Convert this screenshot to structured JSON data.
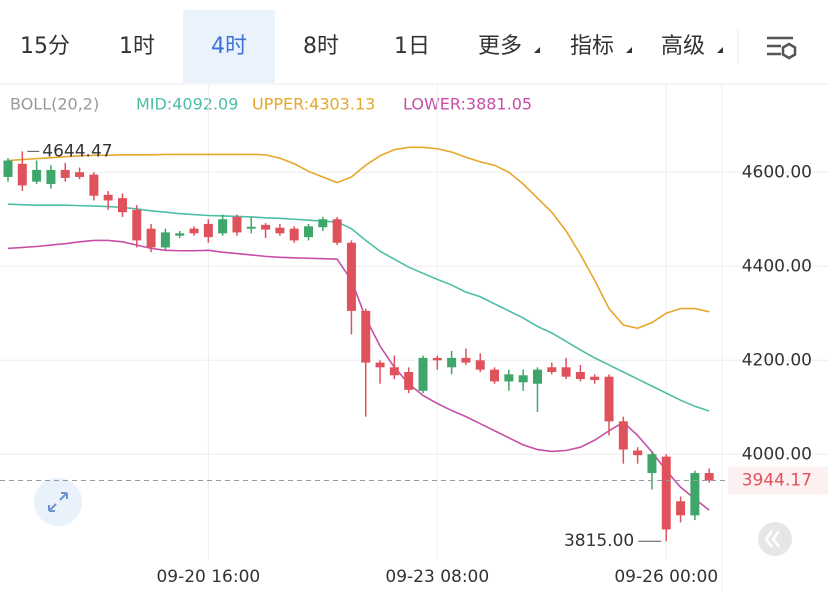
{
  "tabs": [
    {
      "label": "15分"
    },
    {
      "label": "1时"
    },
    {
      "label": "4时",
      "selected": true
    },
    {
      "label": "8时"
    },
    {
      "label": "1日"
    },
    {
      "label": "更多",
      "dropdown": true
    },
    {
      "label": "指标",
      "dropdown": true
    },
    {
      "label": "高级",
      "dropdown": true
    }
  ],
  "chart_data": {
    "type": "candlestick",
    "indicator": "BOLL(20,2)",
    "categories": [
      null,
      null,
      null,
      null,
      null,
      null,
      null,
      null,
      null,
      null,
      null,
      null,
      null,
      null,
      "09-20 16:00",
      null,
      null,
      null,
      null,
      null,
      null,
      null,
      null,
      null,
      null,
      null,
      null,
      null,
      null,
      null,
      "09-23 08:00",
      null,
      null,
      null,
      null,
      null,
      null,
      null,
      null,
      null,
      null,
      null,
      null,
      null,
      null,
      null,
      "09-26 00:00",
      null,
      null,
      null
    ],
    "open": [
      4590,
      4618,
      4580,
      4575,
      4605,
      4600,
      4595,
      4552,
      4545,
      4520,
      4480,
      4440,
      4465,
      4480,
      4490,
      4470,
      4505,
      4480,
      4488,
      4482,
      4480,
      4462,
      4483,
      4500,
      4450,
      4305,
      4195,
      4185,
      4175,
      4135,
      4205,
      4185,
      4205,
      4200,
      4180,
      4155,
      4153,
      4150,
      4185,
      4185,
      4175,
      4165,
      4165,
      4070,
      4008,
      3960,
      3995,
      3900,
      3870,
      3960
    ],
    "high": [
      4630,
      4644.47,
      4625,
      4615,
      4620,
      4610,
      4600,
      4560,
      4555,
      4530,
      4490,
      4480,
      4475,
      4485,
      4500,
      4510,
      4510,
      4505,
      4492,
      4490,
      4485,
      4490,
      4505,
      4505,
      4455,
      4310,
      4200,
      4210,
      4185,
      4210,
      4210,
      4220,
      4225,
      4215,
      4185,
      4180,
      4180,
      4185,
      4195,
      4205,
      4190,
      4170,
      4170,
      4080,
      4015,
      4005,
      4000,
      3910,
      3965,
      3970
    ],
    "low": [
      4580,
      4560,
      4575,
      4565,
      4580,
      4585,
      4540,
      4520,
      4505,
      4440,
      4430,
      4435,
      4460,
      4465,
      4450,
      4465,
      4465,
      4470,
      4460,
      4465,
      4450,
      4455,
      4475,
      4445,
      4255,
      4080,
      4150,
      4160,
      4130,
      4130,
      4180,
      4170,
      4190,
      4175,
      4150,
      4135,
      4135,
      4090,
      4170,
      4160,
      4155,
      4150,
      4040,
      3980,
      3980,
      3925,
      3815,
      3855,
      3860,
      3940
    ],
    "close": [
      4625,
      4572,
      4605,
      4605,
      4588,
      4590,
      4550,
      4540,
      4515,
      4455,
      4440,
      4472,
      4470,
      4470,
      4462,
      4500,
      4472,
      4484,
      4478,
      4470,
      4455,
      4485,
      4500,
      4450,
      4305,
      4195,
      4185,
      4168,
      4137,
      4205,
      4200,
      4205,
      4195,
      4180,
      4155,
      4170,
      4168,
      4180,
      4175,
      4165,
      4160,
      4158,
      4070,
      4010,
      3998,
      4000,
      3840,
      3870,
      3960,
      3944.17
    ],
    "up_color": "#3fa66a",
    "down_color": "#e0525b",
    "series": [
      {
        "name": "MID:4092.09",
        "color": "#4cbfa6",
        "values": [
          4532,
          4531,
          4530,
          4530,
          4530,
          4529,
          4528,
          4527,
          4525,
          4522,
          4518,
          4515,
          4512,
          4510,
          4508,
          4507,
          4506,
          4505,
          4503,
          4502,
          4500,
          4498,
          4496,
          4494,
          4480,
          4455,
          4432,
          4415,
          4398,
          4385,
          4372,
          4360,
          4345,
          4335,
          4320,
          4305,
          4290,
          4272,
          4258,
          4240,
          4222,
          4205,
          4190,
          4175,
          4160,
          4145,
          4130,
          4115,
          4102,
          4092.09
        ]
      },
      {
        "name": "UPPER:4303.13",
        "color": "#e6a72a",
        "values": [
          4625,
          4627,
          4629,
          4631,
          4633,
          4635,
          4636,
          4636,
          4637,
          4637,
          4637,
          4638,
          4638,
          4638,
          4638,
          4638,
          4638,
          4638,
          4637,
          4630,
          4618,
          4602,
          4590,
          4578,
          4590,
          4615,
          4635,
          4648,
          4653,
          4653,
          4650,
          4643,
          4632,
          4622,
          4615,
          4600,
          4575,
          4545,
          4515,
          4475,
          4425,
          4370,
          4310,
          4275,
          4268,
          4280,
          4300,
          4310,
          4310,
          4303.13
        ]
      },
      {
        "name": "LOWER:3881.05",
        "color": "#c74fa8",
        "values": [
          4438,
          4440,
          4442,
          4445,
          4448,
          4452,
          4455,
          4455,
          4452,
          4445,
          4438,
          4434,
          4433,
          4433,
          4434,
          4430,
          4427,
          4424,
          4421,
          4419,
          4418,
          4417,
          4416,
          4415,
          4370,
          4290,
          4230,
          4185,
          4150,
          4125,
          4108,
          4093,
          4080,
          4065,
          4050,
          4035,
          4020,
          4010,
          4006,
          4008,
          4015,
          4030,
          4050,
          4068,
          4040,
          4005,
          3965,
          3930,
          3905,
          3881.05
        ]
      }
    ],
    "ylim": [
      3775,
      4775
    ],
    "yticks": [
      {
        "value": 4000,
        "label": "4000.00"
      },
      {
        "value": 4200,
        "label": "4200.00"
      },
      {
        "value": 4400,
        "label": "4400.00"
      },
      {
        "value": 4600,
        "label": "4600.00"
      }
    ],
    "grid": true,
    "max_label": 4644.47,
    "max_index": 1,
    "min_label": {
      "value": 3815,
      "label": "3815.00"
    },
    "min_index": 46,
    "last_price": 3944.17
  }
}
